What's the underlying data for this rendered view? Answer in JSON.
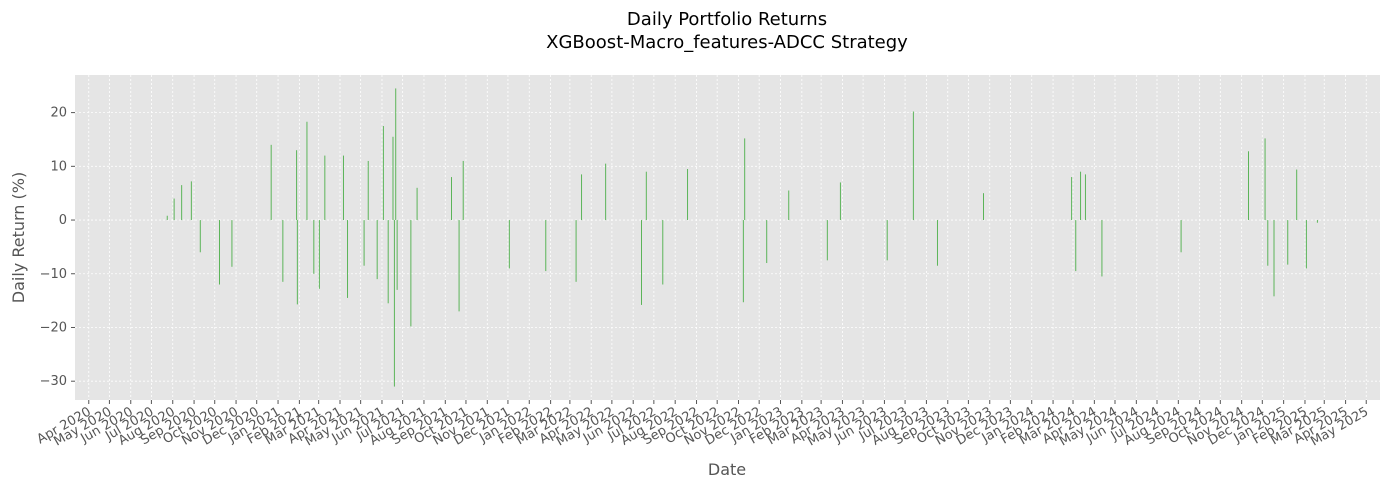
{
  "chart_data": {
    "type": "bar",
    "title": "Daily Portfolio Returns",
    "subtitle": "XGBoost-Macro_features-ADCC Strategy",
    "xlabel": "Date",
    "ylabel": "Daily Return (%)",
    "x_range": [
      "2020-04-01",
      "2025-05-01"
    ],
    "ylim": [
      -33.5,
      27
    ],
    "yticks": [
      -30,
      -20,
      -10,
      0,
      10,
      20
    ],
    "xticks": [
      "Apr 2020",
      "May 2020",
      "Jun 2020",
      "Jul 2020",
      "Aug 2020",
      "Sep 2020",
      "Oct 2020",
      "Nov 2020",
      "Dec 2020",
      "Jan 2021",
      "Feb 2021",
      "Mar 2021",
      "Apr 2021",
      "May 2021",
      "Jun 2021",
      "Jul 2021",
      "Aug 2021",
      "Sep 2021",
      "Oct 2021",
      "Nov 2021",
      "Dec 2021",
      "Jan 2022",
      "Feb 2022",
      "Mar 2022",
      "Apr 2022",
      "May 2022",
      "Jun 2022",
      "Jul 2022",
      "Aug 2022",
      "Sep 2022",
      "Oct 2022",
      "Nov 2022",
      "Dec 2022",
      "Jan 2023",
      "Feb 2023",
      "Mar 2023",
      "Apr 2023",
      "May 2023",
      "Jun 2023",
      "Jul 2023",
      "Aug 2023",
      "Sep 2023",
      "Oct 2023",
      "Nov 2023",
      "Dec 2023",
      "Jan 2024",
      "Feb 2024",
      "Mar 2024",
      "Apr 2024",
      "May 2024",
      "Jun 2024",
      "Jul 2024",
      "Aug 2024",
      "Sep 2024",
      "Oct 2024",
      "Nov 2024",
      "Dec 2024",
      "Jan 2025",
      "Feb 2025",
      "Mar 2025",
      "Apr 2025",
      "May 2025"
    ],
    "grid": true,
    "bar_color": "#4daf4a",
    "series": [
      {
        "values_by_date": [
          {
            "date": "2020-07-24",
            "value": 0.8
          },
          {
            "date": "2020-08-03",
            "value": 4.0
          },
          {
            "date": "2020-08-14",
            "value": 6.5
          },
          {
            "date": "2020-08-28",
            "value": 7.2
          },
          {
            "date": "2020-09-10",
            "value": -6.0
          },
          {
            "date": "2020-10-08",
            "value": -12.0
          },
          {
            "date": "2020-10-26",
            "value": -8.7
          },
          {
            "date": "2020-12-22",
            "value": 14.0
          },
          {
            "date": "2021-01-08",
            "value": -11.5
          },
          {
            "date": "2021-01-28",
            "value": 13.0
          },
          {
            "date": "2021-01-29",
            "value": -15.7
          },
          {
            "date": "2021-02-12",
            "value": 18.3
          },
          {
            "date": "2021-02-22",
            "value": -10.0
          },
          {
            "date": "2021-03-02",
            "value": -12.8
          },
          {
            "date": "2021-03-10",
            "value": 12.0
          },
          {
            "date": "2021-04-06",
            "value": 12.0
          },
          {
            "date": "2021-04-12",
            "value": -14.5
          },
          {
            "date": "2021-05-06",
            "value": -8.5
          },
          {
            "date": "2021-05-12",
            "value": 11.0
          },
          {
            "date": "2021-05-25",
            "value": -11.0
          },
          {
            "date": "2021-06-03",
            "value": 17.5
          },
          {
            "date": "2021-06-10",
            "value": -15.5
          },
          {
            "date": "2021-06-17",
            "value": 15.5
          },
          {
            "date": "2021-06-19",
            "value": -31.0
          },
          {
            "date": "2021-06-21",
            "value": 24.5
          },
          {
            "date": "2021-06-23",
            "value": -13.0
          },
          {
            "date": "2021-07-13",
            "value": -19.8
          },
          {
            "date": "2021-07-22",
            "value": 6.0
          },
          {
            "date": "2021-09-10",
            "value": 8.0
          },
          {
            "date": "2021-09-21",
            "value": -17.0
          },
          {
            "date": "2021-09-27",
            "value": 11.0
          },
          {
            "date": "2021-12-03",
            "value": -9.0
          },
          {
            "date": "2022-01-25",
            "value": -9.5
          },
          {
            "date": "2022-03-10",
            "value": -11.5
          },
          {
            "date": "2022-03-18",
            "value": 8.5
          },
          {
            "date": "2022-04-22",
            "value": 10.5
          },
          {
            "date": "2022-06-13",
            "value": -15.8
          },
          {
            "date": "2022-06-20",
            "value": 9.0
          },
          {
            "date": "2022-07-14",
            "value": -12.0
          },
          {
            "date": "2022-08-19",
            "value": 9.5
          },
          {
            "date": "2022-11-08",
            "value": -15.3
          },
          {
            "date": "2022-11-10",
            "value": 15.2
          },
          {
            "date": "2022-12-12",
            "value": -8.0
          },
          {
            "date": "2023-01-13",
            "value": 5.5
          },
          {
            "date": "2023-03-10",
            "value": -7.5
          },
          {
            "date": "2023-03-29",
            "value": 7.0
          },
          {
            "date": "2023-06-05",
            "value": -7.5
          },
          {
            "date": "2023-07-13",
            "value": 20.2
          },
          {
            "date": "2023-08-17",
            "value": -8.5
          },
          {
            "date": "2023-10-23",
            "value": 5.0
          },
          {
            "date": "2024-02-28",
            "value": 8.0
          },
          {
            "date": "2024-03-05",
            "value": -9.5
          },
          {
            "date": "2024-03-12",
            "value": 9.0
          },
          {
            "date": "2024-03-19",
            "value": 8.5
          },
          {
            "date": "2024-04-12",
            "value": -10.5
          },
          {
            "date": "2024-08-05",
            "value": -6.0
          },
          {
            "date": "2024-11-11",
            "value": 12.8
          },
          {
            "date": "2024-12-05",
            "value": 15.2
          },
          {
            "date": "2024-12-09",
            "value": -8.5
          },
          {
            "date": "2024-12-18",
            "value": -14.2
          },
          {
            "date": "2025-01-07",
            "value": -8.3
          },
          {
            "date": "2025-01-20",
            "value": 9.4
          },
          {
            "date": "2025-02-03",
            "value": -9.0
          },
          {
            "date": "2025-02-19",
            "value": -0.5
          }
        ]
      }
    ]
  }
}
